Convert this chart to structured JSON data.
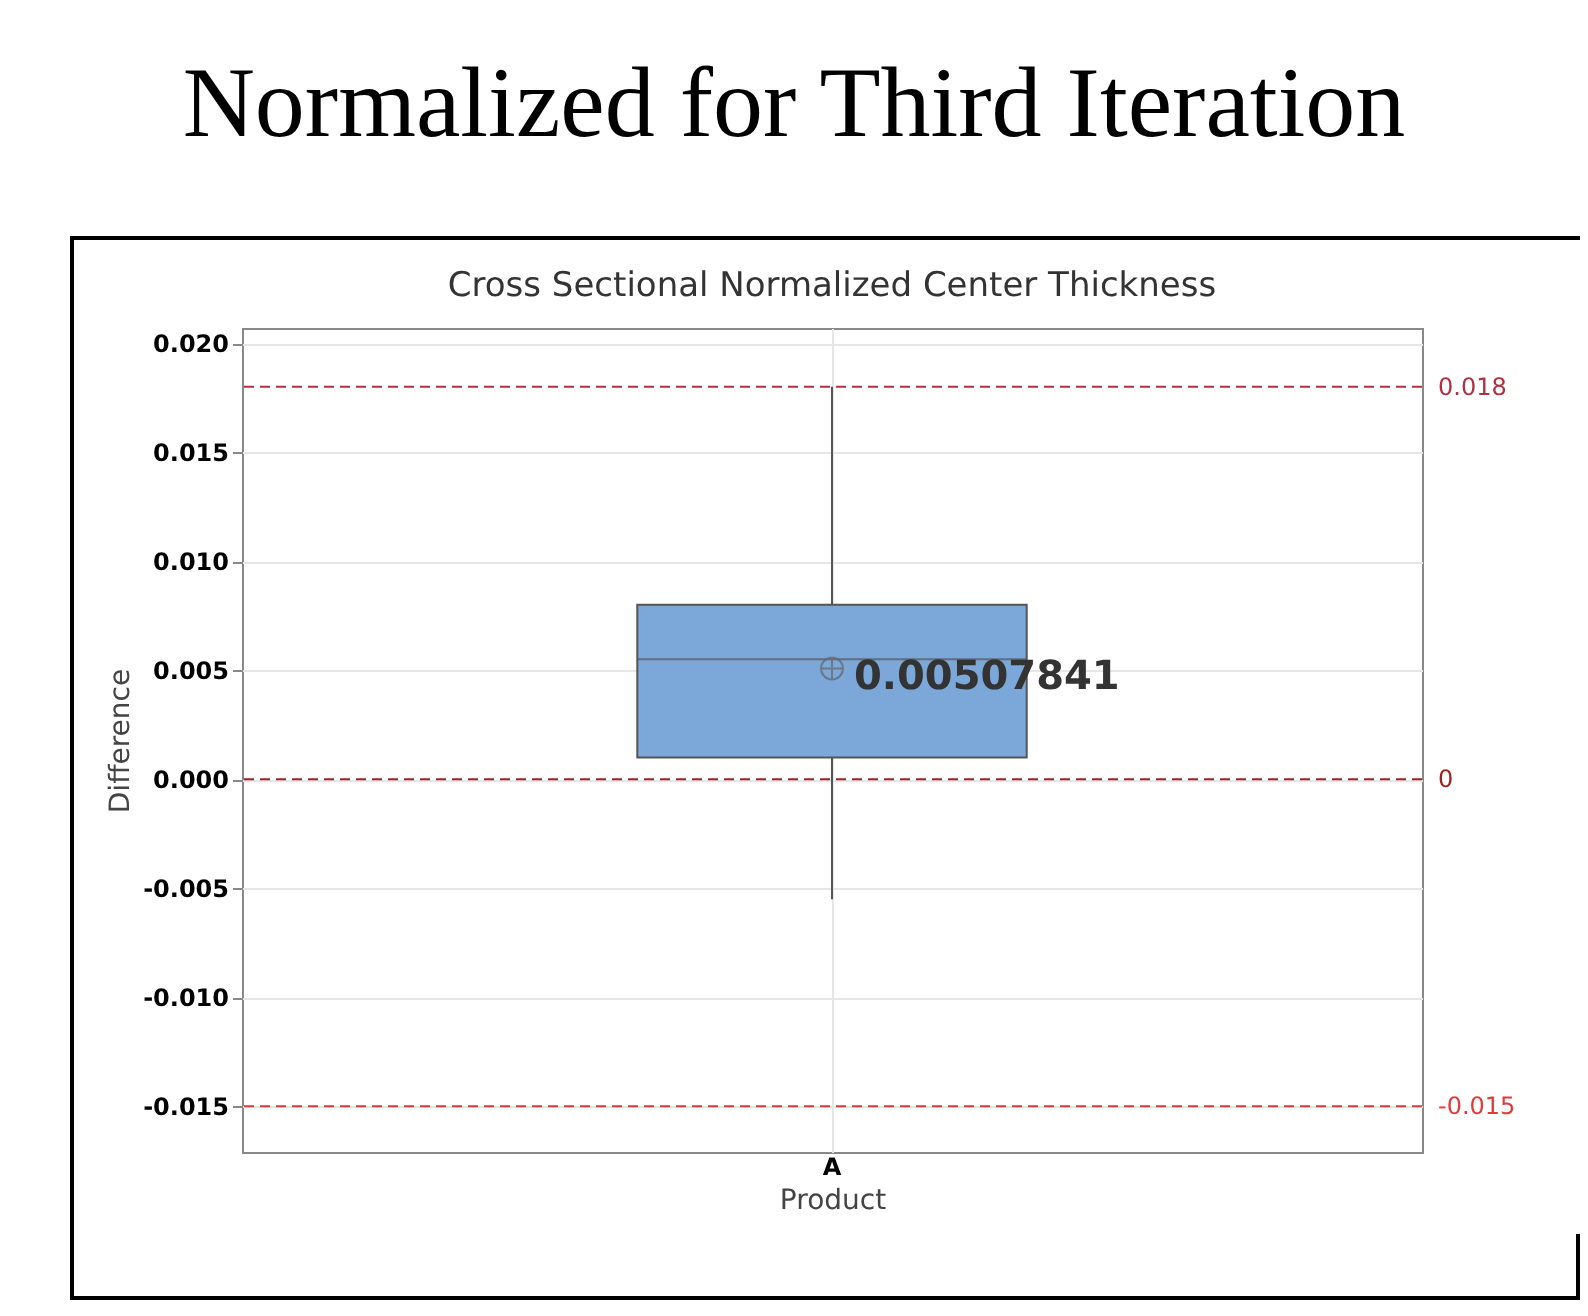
{
  "chart_data": {
    "type": "box",
    "title": "Normalized for Third Iteration",
    "subtitle": "Cross Sectional Normalized Center Thickness",
    "xlabel": "Product",
    "ylabel": "Difference",
    "categories": [
      "A"
    ],
    "series": [
      {
        "color": "#7ba7d9",
        "boxes": [
          {
            "low": -0.0055,
            "q1": 0.001,
            "median": 0.0055,
            "q3": 0.008,
            "high": 0.018,
            "mean": 0.00507841
          }
        ]
      }
    ],
    "annotations": [
      {
        "text": "0.00507841",
        "x": "A",
        "y": 0.00507841
      }
    ],
    "ylim": [
      -0.0171,
      0.0207
    ],
    "yticks": [
      {
        "value": -0.015,
        "label": "-0.015"
      },
      {
        "value": -0.01,
        "label": "-0.010"
      },
      {
        "value": -0.005,
        "label": "-0.005"
      },
      {
        "value": 0,
        "label": "0.000"
      },
      {
        "value": 0.005,
        "label": "0.005"
      },
      {
        "value": 0.01,
        "label": "0.010"
      },
      {
        "value": 0.015,
        "label": "0.015"
      },
      {
        "value": 0.02,
        "label": "0.020"
      }
    ],
    "ref_lines": [
      {
        "axis": "y",
        "value": 0.018,
        "label": "0.018",
        "color": "#b03040",
        "line_style": "dashed"
      },
      {
        "axis": "y",
        "value": 0,
        "label": "0",
        "color": "#a02020",
        "line_style": "dashed"
      },
      {
        "axis": "y",
        "value": -0.015,
        "label": "-0.015",
        "color": "#e03a3a",
        "line_style": "dashed"
      }
    ],
    "grid": true,
    "marker": "circle"
  }
}
